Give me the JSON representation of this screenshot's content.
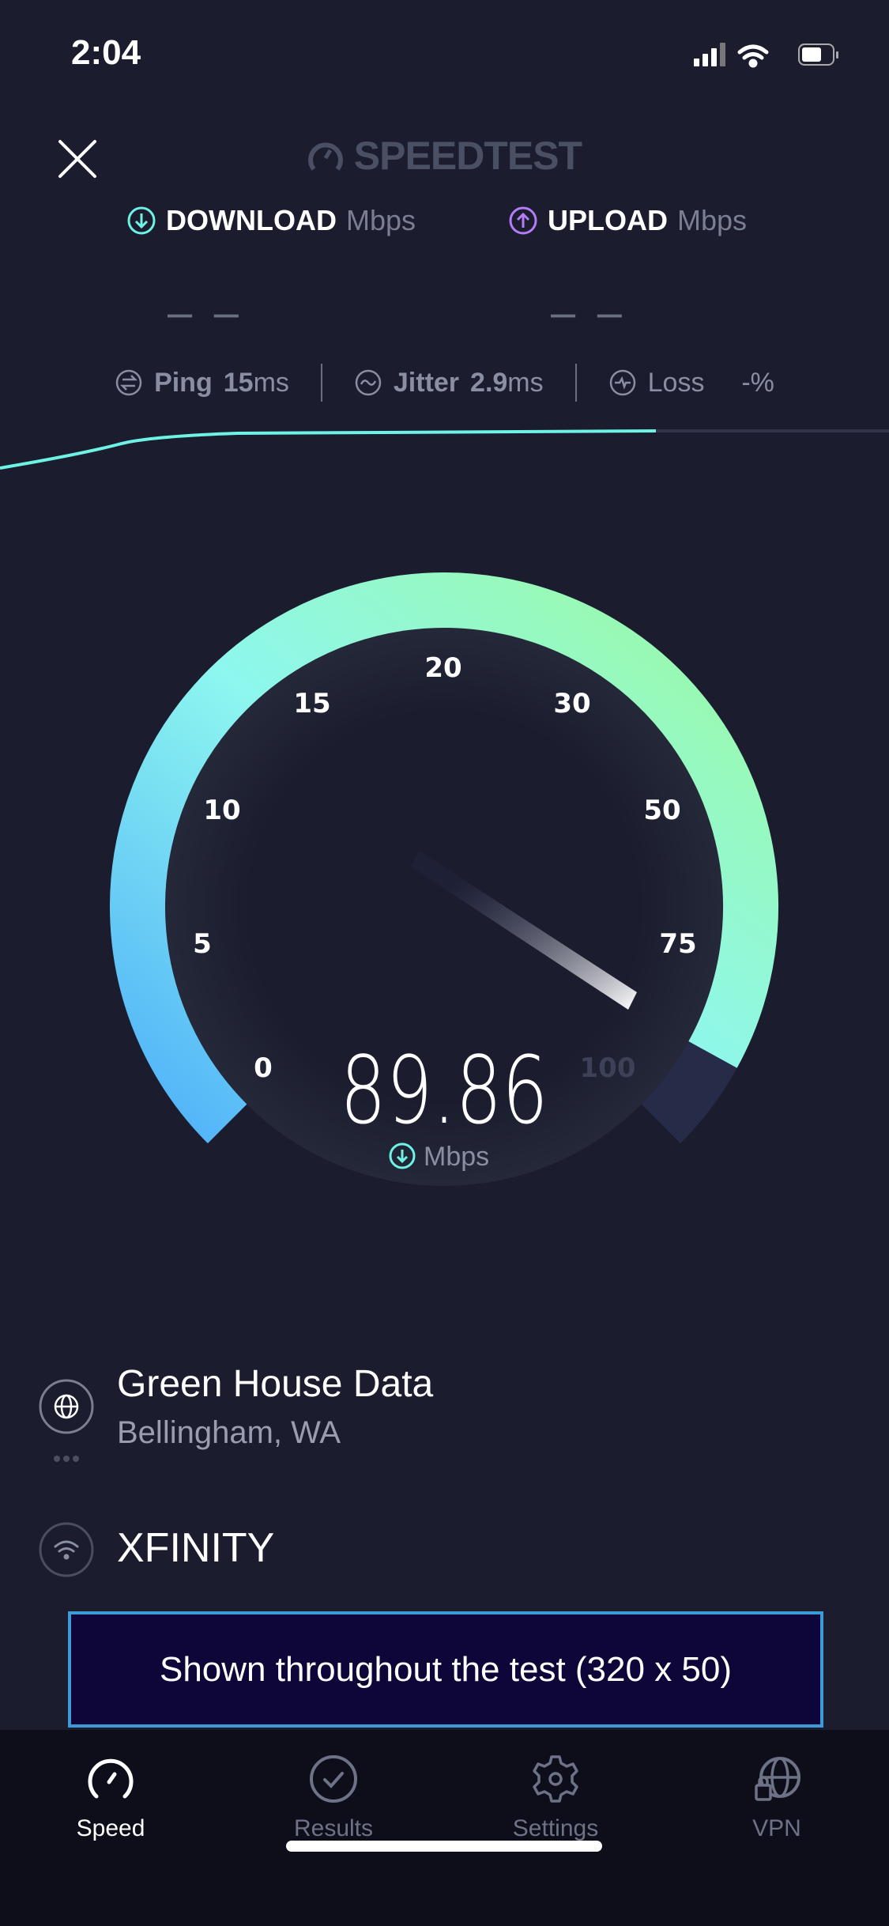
{
  "status_bar": {
    "time": "2:04"
  },
  "header": {
    "logo": "SPEEDTEST",
    "close_icon": "close-icon"
  },
  "download": {
    "label": "DOWNLOAD",
    "unit": "Mbps",
    "value": "– –",
    "color": "#6ff2e6"
  },
  "upload": {
    "label": "UPLOAD",
    "unit": "Mbps",
    "value": "– –",
    "color": "#b57cf7"
  },
  "stats": {
    "ping_label": "Ping",
    "ping_value": "15",
    "ping_unit": "ms",
    "jitter_label": "Jitter",
    "jitter_value": "2.9",
    "jitter_unit": "ms",
    "loss_label": "Loss",
    "loss_value": "-%"
  },
  "gauge": {
    "ticks": [
      "0",
      "5",
      "10",
      "15",
      "20",
      "30",
      "50",
      "75",
      "100"
    ],
    "current_speed": "89.86",
    "unit": "Mbps",
    "progress_fraction": 0.94
  },
  "server": {
    "name": "Green House Data",
    "location": "Bellingham, WA"
  },
  "provider": {
    "name": "XFINITY"
  },
  "ad": {
    "text": "Shown throughout the test (320 x 50)"
  },
  "tabs": [
    {
      "label": "Speed",
      "active": true
    },
    {
      "label": "Results"
    },
    {
      "label": "Settings"
    },
    {
      "label": "VPN"
    }
  ]
}
